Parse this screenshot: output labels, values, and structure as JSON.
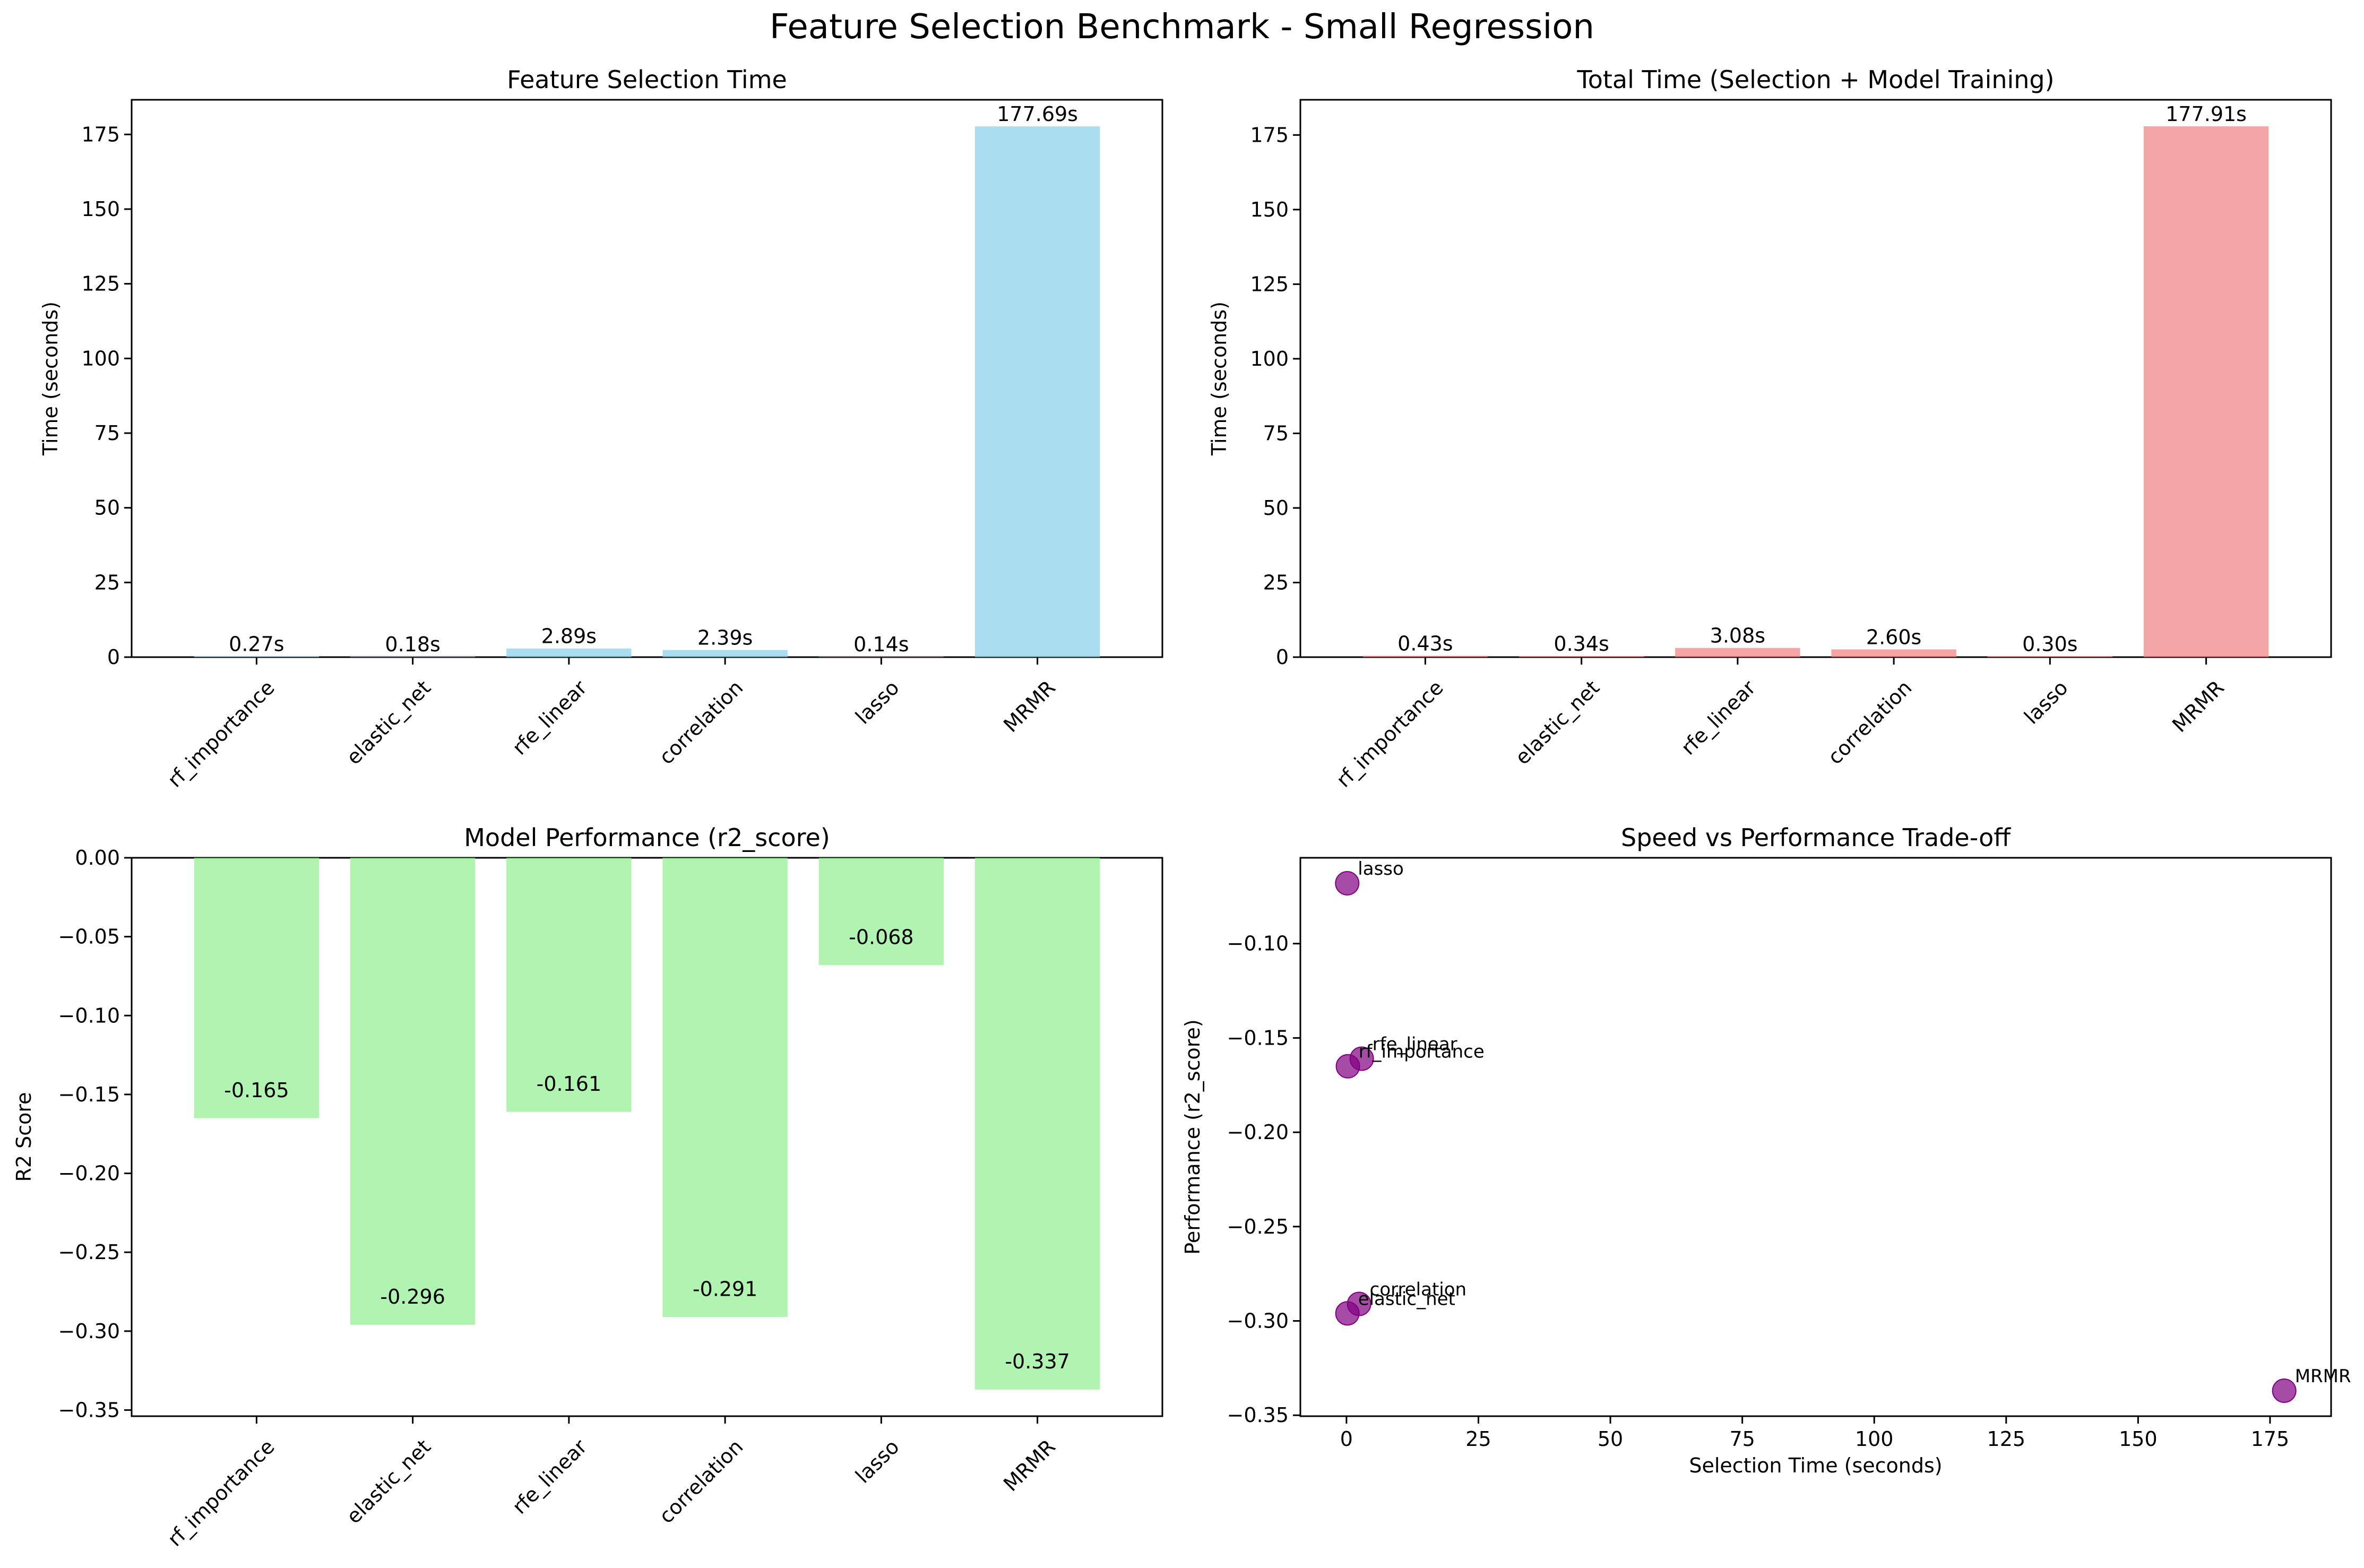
{
  "page": {
    "title": "Feature Selection Benchmark - Small Regression"
  },
  "chart_data": [
    {
      "type": "bar",
      "title": "Feature Selection Time",
      "xlabel": "",
      "ylabel": "Time (seconds)",
      "categories": [
        "rf_importance",
        "elastic_net",
        "rfe_linear",
        "correlation",
        "lasso",
        "MRMR"
      ],
      "values": [
        0.27,
        0.18,
        2.89,
        2.39,
        0.14,
        177.69
      ],
      "value_labels": [
        "0.27s",
        "0.18s",
        "2.89s",
        "2.39s",
        "0.14s",
        "177.69s"
      ],
      "ylim": [
        0,
        186.6
      ],
      "yticks": [
        0,
        25,
        50,
        75,
        100,
        125,
        150,
        175
      ],
      "ytick_labels": [
        "0",
        "25",
        "50",
        "75",
        "100",
        "125",
        "150",
        "175"
      ],
      "color": "#87CEEB",
      "grid": false,
      "legend": "none"
    },
    {
      "type": "bar",
      "title": "Total Time (Selection + Model Training)",
      "xlabel": "",
      "ylabel": "Time (seconds)",
      "categories": [
        "rf_importance",
        "elastic_net",
        "rfe_linear",
        "correlation",
        "lasso",
        "MRMR"
      ],
      "values": [
        0.43,
        0.34,
        3.08,
        2.6,
        0.3,
        177.91
      ],
      "value_labels": [
        "0.43s",
        "0.34s",
        "3.08s",
        "2.60s",
        "0.30s",
        "177.91s"
      ],
      "ylim": [
        0,
        186.8
      ],
      "yticks": [
        0,
        25,
        50,
        75,
        100,
        125,
        150,
        175
      ],
      "ytick_labels": [
        "0",
        "25",
        "50",
        "75",
        "100",
        "125",
        "150",
        "175"
      ],
      "color": "#F08080",
      "grid": false,
      "legend": "none"
    },
    {
      "type": "bar",
      "title": "Model Performance (r2_score)",
      "xlabel": "",
      "ylabel": "R2 Score",
      "categories": [
        "rf_importance",
        "elastic_net",
        "rfe_linear",
        "correlation",
        "lasso",
        "MRMR"
      ],
      "values": [
        -0.165,
        -0.296,
        -0.161,
        -0.291,
        -0.068,
        -0.337
      ],
      "value_labels": [
        "-0.165",
        "-0.296",
        "-0.161",
        "-0.291",
        "-0.068",
        "-0.337"
      ],
      "ylim": [
        -0.3539,
        0
      ],
      "yticks": [
        0,
        -0.05,
        -0.1,
        -0.15,
        -0.2,
        -0.25,
        -0.3,
        -0.35
      ],
      "ytick_labels": [
        "0.00",
        "−0.05",
        "−0.10",
        "−0.15",
        "−0.20",
        "−0.25",
        "−0.30",
        "−0.35"
      ],
      "color": "#90EE90",
      "grid": false,
      "legend": "none"
    },
    {
      "type": "scatter",
      "title": "Speed vs Performance Trade-off",
      "xlabel": "Selection Time (seconds)",
      "ylabel": "Performance (r2_score)",
      "points": [
        {
          "label": "rf_importance",
          "x": 0.27,
          "y": -0.165
        },
        {
          "label": "elastic_net",
          "x": 0.18,
          "y": -0.296
        },
        {
          "label": "rfe_linear",
          "x": 2.89,
          "y": -0.161
        },
        {
          "label": "correlation",
          "x": 2.39,
          "y": -0.291
        },
        {
          "label": "lasso",
          "x": 0.14,
          "y": -0.068
        },
        {
          "label": "MRMR",
          "x": 177.69,
          "y": -0.337
        }
      ],
      "xlim": [
        -8.74,
        186.57
      ],
      "ylim": [
        -0.3505,
        -0.0545
      ],
      "xticks": [
        0,
        25,
        50,
        75,
        100,
        125,
        150,
        175
      ],
      "xtick_labels": [
        "0",
        "25",
        "50",
        "75",
        "100",
        "125",
        "150",
        "175"
      ],
      "yticks": [
        -0.1,
        -0.15,
        -0.2,
        -0.25,
        -0.3,
        -0.35
      ],
      "ytick_labels": [
        "−0.10",
        "−0.15",
        "−0.20",
        "−0.25",
        "−0.30",
        "−0.35"
      ],
      "color": "#800080",
      "grid": false,
      "legend": "none"
    }
  ]
}
